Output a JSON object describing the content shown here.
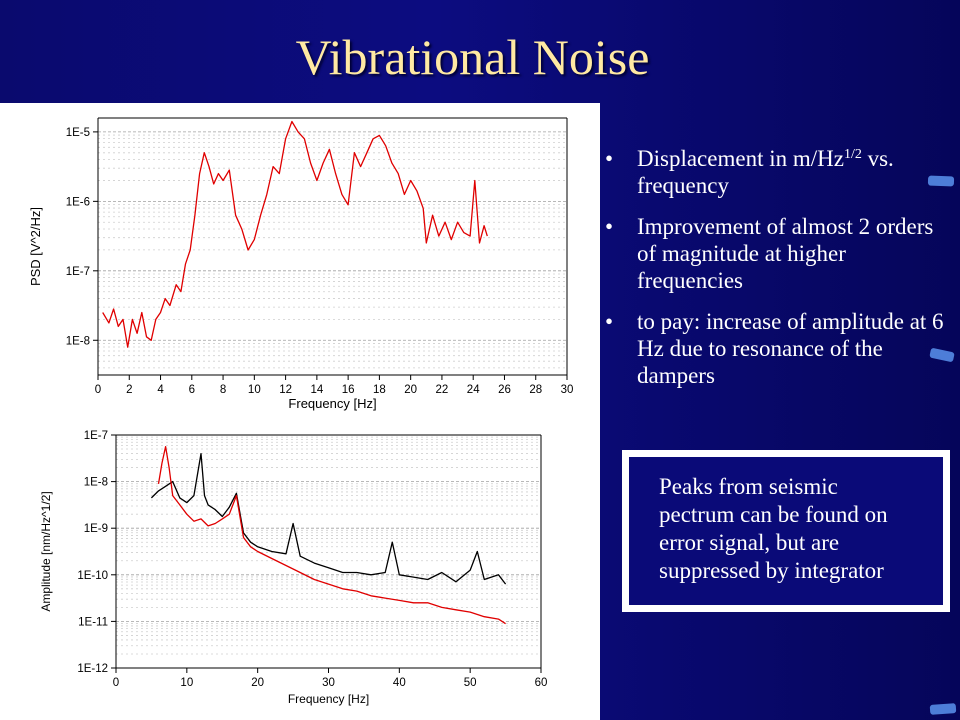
{
  "slide": {
    "title": "Vibrational Noise",
    "bullets": [
      {
        "text": "Displacement in m/Hz",
        "sup": "1/2",
        "tail": " vs. frequency"
      },
      {
        "text": "Improvement of almost 2 orders of magnitude at higher frequencies"
      },
      {
        "text": "to pay: increase of amplitude at 6 Hz due to resonance of the dampers"
      }
    ],
    "bullet_glyph": "•",
    "note": "Peaks from seismic\npectrum can be found on\nerror signal, but are\nsuppressed by integrator",
    "colors": {
      "background": "#0c0c80",
      "title": "#ffe9a3",
      "accent_dash": "#4d7dd8",
      "trace_red": "#e00000",
      "trace_black": "#000000"
    }
  },
  "chart_data": [
    {
      "type": "line",
      "xlabel": "Frequency [Hz]",
      "ylabel": "PSD [V^2/Hz]",
      "xlim": [
        0,
        30
      ],
      "ylim_exponent": [
        -8.5,
        -4.8
      ],
      "log_y": true,
      "grid": true,
      "x_ticks": [
        "0",
        "2",
        "4",
        "6",
        "8",
        "10",
        "12",
        "14",
        "16",
        "18",
        "20",
        "22",
        "24",
        "26",
        "28",
        "30"
      ],
      "y_ticks": [
        {
          "label": "1E-8",
          "exp": -8
        },
        {
          "label": "1E-7",
          "exp": -7
        },
        {
          "label": "1E-6",
          "exp": -6
        },
        {
          "label": "1E-5",
          "exp": -5
        }
      ],
      "series": [
        {
          "color": "#e00000",
          "points": [
            [
              0.3,
              -7.6
            ],
            [
              0.7,
              -7.75
            ],
            [
              1.0,
              -7.55
            ],
            [
              1.3,
              -7.8
            ],
            [
              1.6,
              -7.7
            ],
            [
              1.9,
              -8.1
            ],
            [
              2.2,
              -7.7
            ],
            [
              2.5,
              -7.9
            ],
            [
              2.8,
              -7.6
            ],
            [
              3.1,
              -7.95
            ],
            [
              3.4,
              -8.0
            ],
            [
              3.7,
              -7.7
            ],
            [
              4.0,
              -7.6
            ],
            [
              4.3,
              -7.4
            ],
            [
              4.6,
              -7.5
            ],
            [
              5.0,
              -7.2
            ],
            [
              5.3,
              -7.3
            ],
            [
              5.6,
              -6.9
            ],
            [
              5.9,
              -6.7
            ],
            [
              6.2,
              -6.2
            ],
            [
              6.5,
              -5.6
            ],
            [
              6.8,
              -5.3
            ],
            [
              7.1,
              -5.5
            ],
            [
              7.4,
              -5.75
            ],
            [
              7.7,
              -5.6
            ],
            [
              8.0,
              -5.7
            ],
            [
              8.4,
              -5.55
            ],
            [
              8.8,
              -6.2
            ],
            [
              9.2,
              -6.4
            ],
            [
              9.6,
              -6.7
            ],
            [
              10.0,
              -6.55
            ],
            [
              10.4,
              -6.2
            ],
            [
              10.8,
              -5.9
            ],
            [
              11.2,
              -5.5
            ],
            [
              11.6,
              -5.6
            ],
            [
              12.0,
              -5.1
            ],
            [
              12.4,
              -4.85
            ],
            [
              12.8,
              -5.0
            ],
            [
              13.2,
              -5.1
            ],
            [
              13.6,
              -5.45
            ],
            [
              14.0,
              -5.7
            ],
            [
              14.4,
              -5.45
            ],
            [
              14.8,
              -5.25
            ],
            [
              15.2,
              -5.6
            ],
            [
              15.6,
              -5.9
            ],
            [
              16.0,
              -6.05
            ],
            [
              16.4,
              -5.3
            ],
            [
              16.8,
              -5.5
            ],
            [
              17.2,
              -5.3
            ],
            [
              17.6,
              -5.1
            ],
            [
              18.0,
              -5.05
            ],
            [
              18.4,
              -5.2
            ],
            [
              18.8,
              -5.45
            ],
            [
              19.2,
              -5.6
            ],
            [
              19.6,
              -5.9
            ],
            [
              20.0,
              -5.7
            ],
            [
              20.4,
              -5.85
            ],
            [
              20.8,
              -6.1
            ],
            [
              21.0,
              -6.6
            ],
            [
              21.4,
              -6.2
            ],
            [
              21.8,
              -6.5
            ],
            [
              22.2,
              -6.3
            ],
            [
              22.6,
              -6.55
            ],
            [
              23.0,
              -6.3
            ],
            [
              23.4,
              -6.45
            ],
            [
              23.8,
              -6.5
            ],
            [
              24.1,
              -5.7
            ],
            [
              24.4,
              -6.6
            ],
            [
              24.7,
              -6.35
            ],
            [
              24.9,
              -6.5
            ]
          ]
        }
      ]
    },
    {
      "type": "line",
      "xlabel": "Frequency [Hz]",
      "ylabel": "Amplitude [nm/Hz^1/2]",
      "xlim": [
        0,
        60
      ],
      "ylim_exponent": [
        -12,
        -7
      ],
      "log_y": true,
      "grid": true,
      "x_ticks": [
        "0",
        "10",
        "20",
        "30",
        "40",
        "50",
        "60"
      ],
      "y_ticks": [
        {
          "label": "1E-7",
          "exp": -7
        },
        {
          "label": "1E-8",
          "exp": -8
        },
        {
          "label": "1E-9",
          "exp": -9
        },
        {
          "label": "1E-10",
          "exp": -10
        },
        {
          "label": "1E-11",
          "exp": -11
        },
        {
          "label": "1E-12",
          "exp": -12
        }
      ],
      "series": [
        {
          "color": "#000000",
          "points": [
            [
              5,
              -8.35
            ],
            [
              6,
              -8.2
            ],
            [
              7,
              -8.1
            ],
            [
              8,
              -8.0
            ],
            [
              9,
              -8.35
            ],
            [
              10,
              -8.45
            ],
            [
              11,
              -8.3
            ],
            [
              12,
              -7.4
            ],
            [
              12.5,
              -8.3
            ],
            [
              13,
              -8.5
            ],
            [
              14,
              -8.6
            ],
            [
              15,
              -8.75
            ],
            [
              16,
              -8.55
            ],
            [
              17,
              -8.25
            ],
            [
              18,
              -9.1
            ],
            [
              19,
              -9.3
            ],
            [
              20,
              -9.4
            ],
            [
              22,
              -9.5
            ],
            [
              24,
              -9.55
            ],
            [
              25,
              -8.9
            ],
            [
              26,
              -9.6
            ],
            [
              28,
              -9.75
            ],
            [
              30,
              -9.85
            ],
            [
              32,
              -9.95
            ],
            [
              34,
              -9.95
            ],
            [
              36,
              -10.0
            ],
            [
              38,
              -9.95
            ],
            [
              39,
              -9.3
            ],
            [
              40,
              -10.0
            ],
            [
              42,
              -10.05
            ],
            [
              44,
              -10.1
            ],
            [
              46,
              -9.95
            ],
            [
              48,
              -10.15
            ],
            [
              50,
              -9.9
            ],
            [
              51,
              -9.5
            ],
            [
              52,
              -10.1
            ],
            [
              54,
              -10.0
            ],
            [
              55,
              -10.2
            ]
          ]
        },
        {
          "color": "#e00000",
          "points": [
            [
              6,
              -8.05
            ],
            [
              6.5,
              -7.6
            ],
            [
              7,
              -7.25
            ],
            [
              7.5,
              -7.7
            ],
            [
              8,
              -8.3
            ],
            [
              9,
              -8.5
            ],
            [
              10,
              -8.7
            ],
            [
              11,
              -8.85
            ],
            [
              12,
              -8.8
            ],
            [
              13,
              -8.95
            ],
            [
              14,
              -8.9
            ],
            [
              15,
              -8.8
            ],
            [
              16,
              -8.7
            ],
            [
              17,
              -8.3
            ],
            [
              18,
              -9.2
            ],
            [
              19,
              -9.4
            ],
            [
              20,
              -9.5
            ],
            [
              22,
              -9.65
            ],
            [
              24,
              -9.8
            ],
            [
              26,
              -9.95
            ],
            [
              28,
              -10.1
            ],
            [
              30,
              -10.2
            ],
            [
              32,
              -10.3
            ],
            [
              34,
              -10.35
            ],
            [
              36,
              -10.45
            ],
            [
              38,
              -10.5
            ],
            [
              40,
              -10.55
            ],
            [
              42,
              -10.6
            ],
            [
              44,
              -10.6
            ],
            [
              46,
              -10.7
            ],
            [
              48,
              -10.75
            ],
            [
              50,
              -10.8
            ],
            [
              52,
              -10.9
            ],
            [
              54,
              -10.95
            ],
            [
              55,
              -11.05
            ]
          ]
        }
      ]
    }
  ]
}
